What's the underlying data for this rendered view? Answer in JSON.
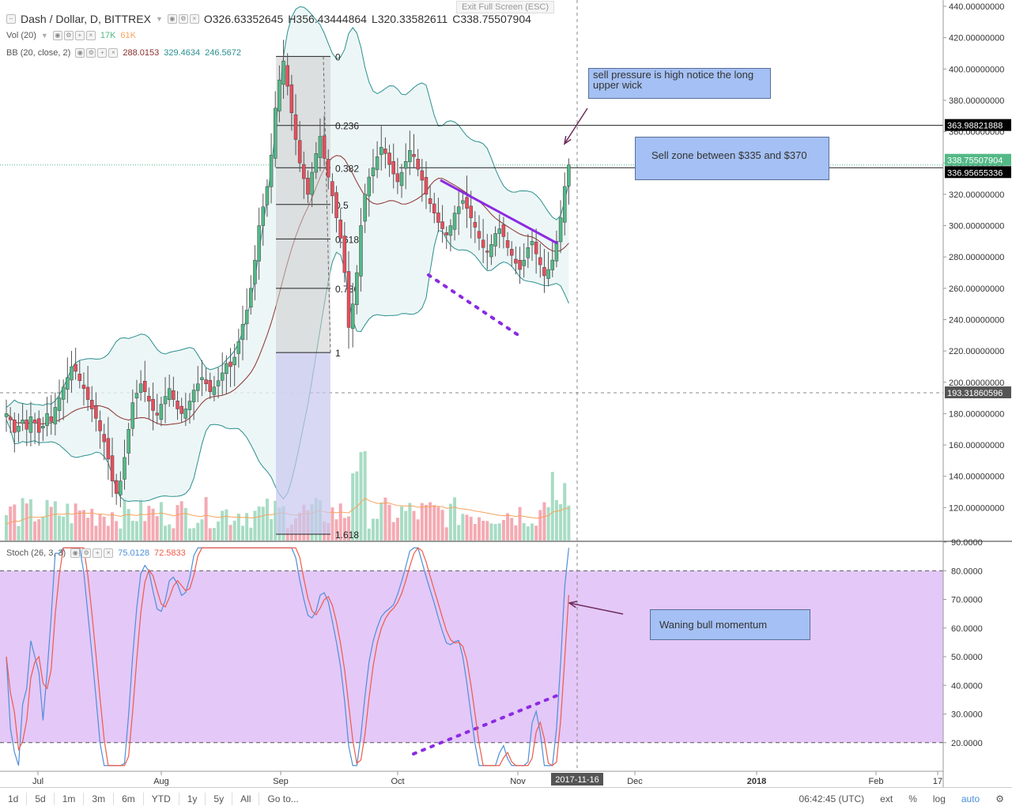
{
  "header": {
    "symbol_title": "Dash / Dollar, D, BITTREX",
    "ohlc": {
      "o": "O326.63352645",
      "h": "H356.43444864",
      "l": "L320.33582611",
      "c": "C338.75507904"
    },
    "vol_label": "Vol (20)",
    "vol_value_a": "17K",
    "vol_value_b": "61K",
    "bb_label": "BB (20, close, 2)",
    "bb_basis": "288.0153",
    "bb_upper": "329.4634",
    "bb_lower": "246.5672",
    "stoch_label": "Stoch (26, 3, 3)",
    "stoch_k": "75.0128",
    "stoch_d": "72.5833",
    "exit_full_screen": "Exit Full Screen (ESC)"
  },
  "colors": {
    "up": "#53b987",
    "down": "#eb4d5c",
    "bb_line": "#2a8f8f",
    "bb_basis": "#8b2e2e",
    "bb_fill": "#e8f4f4",
    "vol_up": "#a8dcc4",
    "vol_down": "#f4aab2",
    "vol_ma": "#f7a35c",
    "stoch_bg": "#e4c8f8",
    "stoch_k": "#4f8fd8",
    "stoch_d": "#ef5a4a",
    "trend_purple": "#8b2be2",
    "annotation_bg": "#a4c0f4",
    "fib_fill": "#cccccc",
    "fib_ext_fill": "#c8c8f0"
  },
  "annotations": [
    {
      "text": "sell pressure is high notice the long upper wick"
    },
    {
      "text": "Sell zone between $335 and $370"
    },
    {
      "text": "Waning bull momentum"
    }
  ],
  "price_badges": {
    "last": "338.75507904",
    "level_a": "363.98821888",
    "level_b": "336.95655336",
    "crosshair": "193.31860596"
  },
  "crosshair_date": "2017-11-16",
  "toolbar": {
    "ranges": [
      "1d",
      "5d",
      "1m",
      "3m",
      "6m",
      "YTD",
      "1y",
      "5y",
      "All"
    ],
    "goto": "Go to...",
    "time": "06:42:45 (UTC)",
    "ext": "ext",
    "pct": "%",
    "log": "log",
    "auto": "auto",
    "gear_icon": "gear-icon"
  },
  "chart_data": {
    "type": "candlestick",
    "xaxis": {
      "tick_labels": [
        "Jul",
        "Aug",
        "Sep",
        "Oct",
        "Nov",
        "Dec",
        "2018",
        "Feb",
        "17"
      ]
    },
    "price_axis": {
      "ylim": [
        100,
        440
      ],
      "tick_labels": [
        "120.00000000",
        "140.00000000",
        "160.00000000",
        "180.00000000",
        "200.00000000",
        "220.00000000",
        "240.00000000",
        "260.00000000",
        "280.00000000",
        "300.00000000",
        "320.00000000",
        "340.00000000",
        "360.00000000",
        "380.00000000",
        "400.00000000",
        "420.00000000",
        "440.00000000"
      ]
    },
    "stoch_axis": {
      "ylim": [
        10,
        90
      ],
      "tick_labels": [
        "20.0000",
        "30.0000",
        "40.0000",
        "50.0000",
        "60.0000",
        "70.0000",
        "80.0000",
        "90.0000"
      ],
      "bands": [
        20,
        80
      ]
    },
    "fib_levels": [
      {
        "label": "0",
        "value": 408
      },
      {
        "label": "0.236",
        "value": 363.98
      },
      {
        "label": "0.382",
        "value": 336.96
      },
      {
        "label": "0.5",
        "value": 313.5
      },
      {
        "label": "0.618",
        "value": 291.5
      },
      {
        "label": "0.786",
        "value": 260
      },
      {
        "label": "1",
        "value": 219
      },
      {
        "label": "1.618",
        "value": 103
      }
    ],
    "close": [
      180,
      176,
      168,
      172,
      176,
      170,
      178,
      174,
      168,
      172,
      180,
      175,
      184,
      190,
      197,
      203,
      210,
      207,
      201,
      196,
      189,
      183,
      177,
      169,
      162,
      151,
      137,
      129,
      137,
      152,
      170,
      187,
      193,
      199,
      194,
      188,
      182,
      179,
      186,
      191,
      196,
      189,
      183,
      180,
      183,
      188,
      195,
      199,
      203,
      199,
      194,
      197,
      201,
      206,
      212,
      210,
      216,
      226,
      237,
      246,
      260,
      278,
      300,
      312,
      325,
      345,
      375,
      393,
      405,
      389,
      372,
      355,
      340,
      330,
      320,
      334,
      346,
      357,
      343,
      331,
      319,
      305,
      292,
      270,
      235,
      250,
      270,
      300,
      320,
      331,
      337,
      344,
      350,
      346,
      339,
      333,
      328,
      334,
      341,
      348,
      344,
      336,
      329,
      320,
      314,
      308,
      302,
      298,
      294,
      300,
      308,
      312,
      316,
      311,
      305,
      299,
      292,
      286,
      283,
      288,
      295,
      298,
      293,
      286,
      281,
      276,
      272,
      278,
      286,
      290,
      282,
      275,
      268,
      272,
      278,
      290,
      305,
      325,
      338.75
    ]
  }
}
